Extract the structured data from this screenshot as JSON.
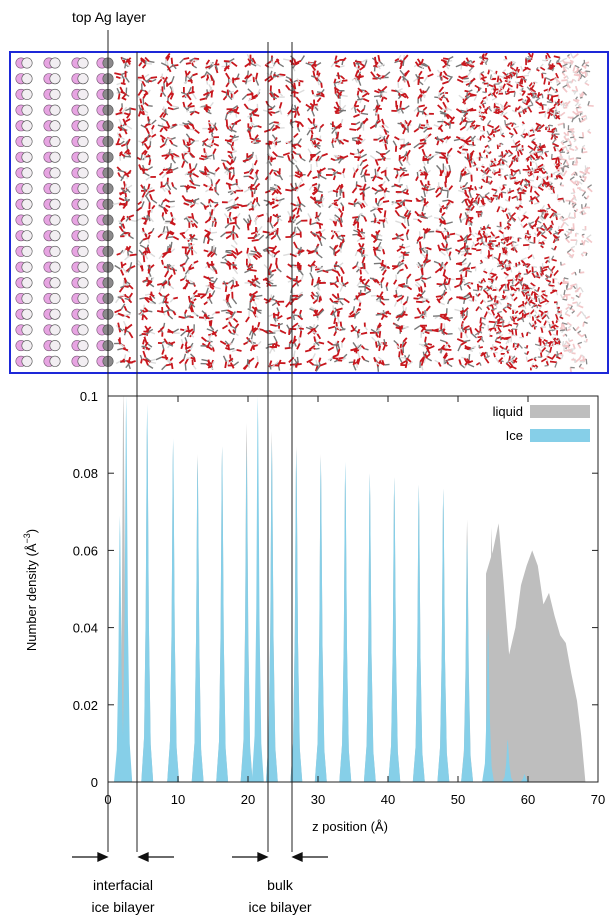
{
  "top_label": "top Ag layer",
  "snapshot": {
    "atom_colors": {
      "silver_light": "#f2eef2",
      "silver_dark": "#9a979a",
      "pink": "#e7a4e2",
      "oxygen": "#c8161d",
      "hydrogen": "#dcdcdc",
      "box_border": "#1d28d8"
    },
    "ag_columns": 4,
    "atom_rows": 20,
    "ice_columns": 17
  },
  "chart_data": {
    "type": "area",
    "xlabel": "z position (Å)",
    "ylabel_main": "Number density (Å",
    "ylabel_sup": "−3",
    "ylabel_close": ")",
    "xlim": [
      0,
      70
    ],
    "ylim": [
      0,
      0.1
    ],
    "x_ticks": [
      "0",
      "10",
      "20",
      "30",
      "40",
      "50",
      "60",
      "70"
    ],
    "y_ticks": [
      "0",
      "0.02",
      "0.04",
      "0.06",
      "0.08",
      "0.1"
    ],
    "legend_position": "top-right",
    "series": [
      {
        "name": "liquid",
        "color": "#bebebe",
        "peaks": [
          [
            2.2,
            0.102
          ],
          [
            5.6,
            0.096
          ],
          [
            9.3,
            0.088
          ],
          [
            12.8,
            0.085
          ],
          [
            16.3,
            0.087
          ],
          [
            19.8,
            0.093
          ],
          [
            23.4,
            0.091
          ],
          [
            26.9,
            0.087
          ],
          [
            30.4,
            0.085
          ],
          [
            33.9,
            0.082
          ],
          [
            37.4,
            0.08
          ],
          [
            40.9,
            0.079
          ],
          [
            44.4,
            0.077
          ],
          [
            47.9,
            0.076
          ],
          [
            51.3,
            0.068
          ],
          [
            54.8,
            0.066
          ]
        ],
        "tail": [
          [
            54.0,
            0.054
          ],
          [
            55.0,
            0.06
          ],
          [
            55.8,
            0.067
          ],
          [
            56.5,
            0.052
          ],
          [
            57.3,
            0.033
          ],
          [
            58.2,
            0.04
          ],
          [
            59.0,
            0.051
          ],
          [
            59.8,
            0.056
          ],
          [
            60.6,
            0.06
          ],
          [
            61.4,
            0.056
          ],
          [
            62.2,
            0.046
          ],
          [
            63.0,
            0.049
          ],
          [
            63.8,
            0.043
          ],
          [
            64.6,
            0.038
          ],
          [
            65.4,
            0.036
          ],
          [
            66.2,
            0.028
          ],
          [
            67.0,
            0.021
          ],
          [
            67.6,
            0.012
          ],
          [
            68.2,
            0.0
          ]
        ]
      },
      {
        "name": "Ice",
        "color": "#86cfe8",
        "peaks": [
          [
            1.7,
            0.069
          ],
          [
            2.6,
            0.1
          ],
          [
            5.6,
            0.098
          ],
          [
            9.3,
            0.089
          ],
          [
            12.8,
            0.084
          ],
          [
            16.3,
            0.087
          ],
          [
            19.8,
            0.086
          ],
          [
            21.4,
            0.1
          ],
          [
            23.4,
            0.088
          ],
          [
            26.9,
            0.086
          ],
          [
            30.4,
            0.084
          ],
          [
            33.9,
            0.083
          ],
          [
            37.4,
            0.08
          ],
          [
            40.9,
            0.079
          ],
          [
            44.4,
            0.077
          ],
          [
            47.9,
            0.076
          ],
          [
            51.3,
            0.063
          ],
          [
            54.3,
            0.04
          ],
          [
            57.1,
            0.011
          ],
          [
            59.5,
            0.002
          ]
        ]
      }
    ]
  },
  "annotations": {
    "interfacial_line1": "interfacial",
    "interfacial_line2": "ice bilayer",
    "bulk_line1": "bulk",
    "bulk_line2": "ice bilayer"
  }
}
